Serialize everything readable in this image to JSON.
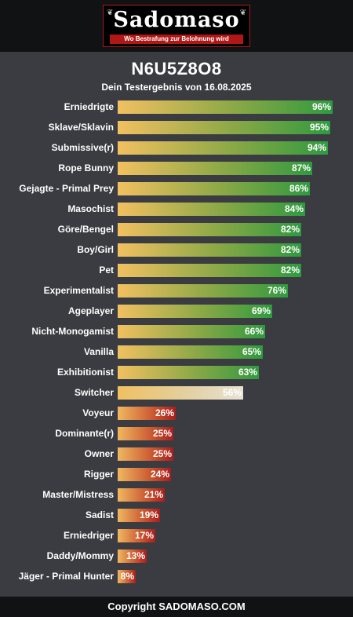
{
  "header": {
    "logo_text": "Sadomaso",
    "tagline": "Wo Bestrafung zur Belohnung wird",
    "ornament_left": "❦",
    "ornament_right": "❦"
  },
  "result": {
    "name": "N6U5Z8O8",
    "subtitle": "Dein Testergebnis von 16.08.2025"
  },
  "chart_data": {
    "type": "bar",
    "orientation": "horizontal",
    "xlim": [
      0,
      100
    ],
    "colors": {
      "high_end": "#2f9a3f",
      "mid_end": "#e8e2d6",
      "low_end": "#a51f1f",
      "start": "#f2c060"
    },
    "categories": [
      "Erniedrigte",
      "Sklave/Sklavin",
      "Submissive(r)",
      "Rope Bunny",
      "Gejagte - Primal Prey",
      "Masochist",
      "Göre/Bengel",
      "Boy/Girl",
      "Pet",
      "Experimentalist",
      "Ageplayer",
      "Nicht-Monogamist",
      "Vanilla",
      "Exhibitionist",
      "Switcher",
      "Voyeur",
      "Dominante(r)",
      "Owner",
      "Rigger",
      "Master/Mistress",
      "Sadist",
      "Erniedriger",
      "Daddy/Mommy",
      "Jäger - Primal Hunter"
    ],
    "values": [
      96,
      95,
      94,
      87,
      86,
      84,
      82,
      82,
      82,
      76,
      69,
      66,
      65,
      63,
      56,
      26,
      25,
      25,
      24,
      21,
      19,
      17,
      13,
      8
    ],
    "value_labels": [
      "96%",
      "95%",
      "94%",
      "87%",
      "86%",
      "84%",
      "82%",
      "82%",
      "82%",
      "76%",
      "69%",
      "66%",
      "65%",
      "63%",
      "56%",
      "26%",
      "25%",
      "25%",
      "24%",
      "21%",
      "19%",
      "17%",
      "13%",
      "8%"
    ]
  },
  "footer": {
    "copyright": "Copyright SADOMASO.COM"
  }
}
